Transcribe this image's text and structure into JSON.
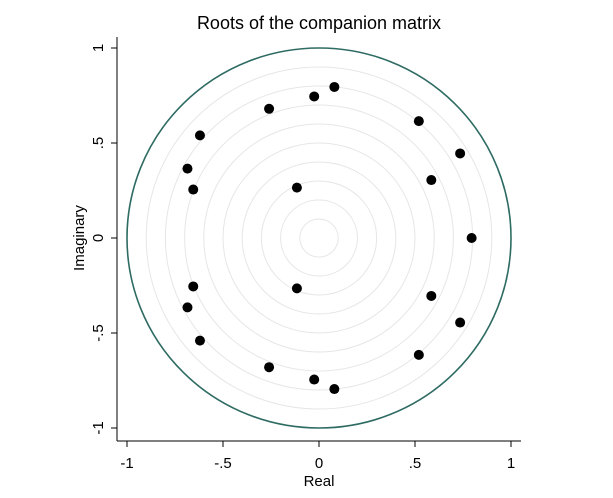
{
  "chart_data": {
    "type": "scatter",
    "title": "Roots of the companion matrix",
    "xlabel": "Real",
    "ylabel": "Imaginary",
    "xlim": [
      -1,
      1
    ],
    "ylim": [
      -1,
      1
    ],
    "x_ticks": [
      {
        "value": -1,
        "label": "-1"
      },
      {
        "value": -0.5,
        "label": "-.5"
      },
      {
        "value": 0,
        "label": "0"
      },
      {
        "value": 0.5,
        "label": ".5"
      },
      {
        "value": 1,
        "label": "1"
      }
    ],
    "y_ticks": [
      {
        "value": -1,
        "label": "-1"
      },
      {
        "value": -0.5,
        "label": "-.5"
      },
      {
        "value": 0,
        "label": "0"
      },
      {
        "value": 0.5,
        "label": ".5"
      },
      {
        "value": 1,
        "label": "1"
      }
    ],
    "unit_circle_color": "#2e6b63",
    "grid_circle_color": "#e6e6e6",
    "grid_circle_radii": [
      0.1,
      0.2,
      0.3,
      0.4,
      0.5,
      0.6,
      0.7,
      0.8,
      0.9
    ],
    "point_color": "#000000",
    "points": [
      {
        "x": 0.08,
        "y": 0.795
      },
      {
        "x": -0.025,
        "y": 0.745
      },
      {
        "x": -0.26,
        "y": 0.68
      },
      {
        "x": 0.52,
        "y": 0.615
      },
      {
        "x": -0.62,
        "y": 0.54
      },
      {
        "x": 0.735,
        "y": 0.445
      },
      {
        "x": -0.685,
        "y": 0.365
      },
      {
        "x": 0.585,
        "y": 0.305
      },
      {
        "x": -0.655,
        "y": 0.255
      },
      {
        "x": -0.115,
        "y": 0.265
      },
      {
        "x": 0.795,
        "y": 0.0
      },
      {
        "x": -0.115,
        "y": -0.265
      },
      {
        "x": -0.655,
        "y": -0.255
      },
      {
        "x": 0.585,
        "y": -0.305
      },
      {
        "x": -0.685,
        "y": -0.365
      },
      {
        "x": 0.735,
        "y": -0.445
      },
      {
        "x": -0.62,
        "y": -0.54
      },
      {
        "x": 0.52,
        "y": -0.615
      },
      {
        "x": -0.26,
        "y": -0.68
      },
      {
        "x": -0.025,
        "y": -0.745
      },
      {
        "x": 0.08,
        "y": -0.795
      }
    ]
  }
}
